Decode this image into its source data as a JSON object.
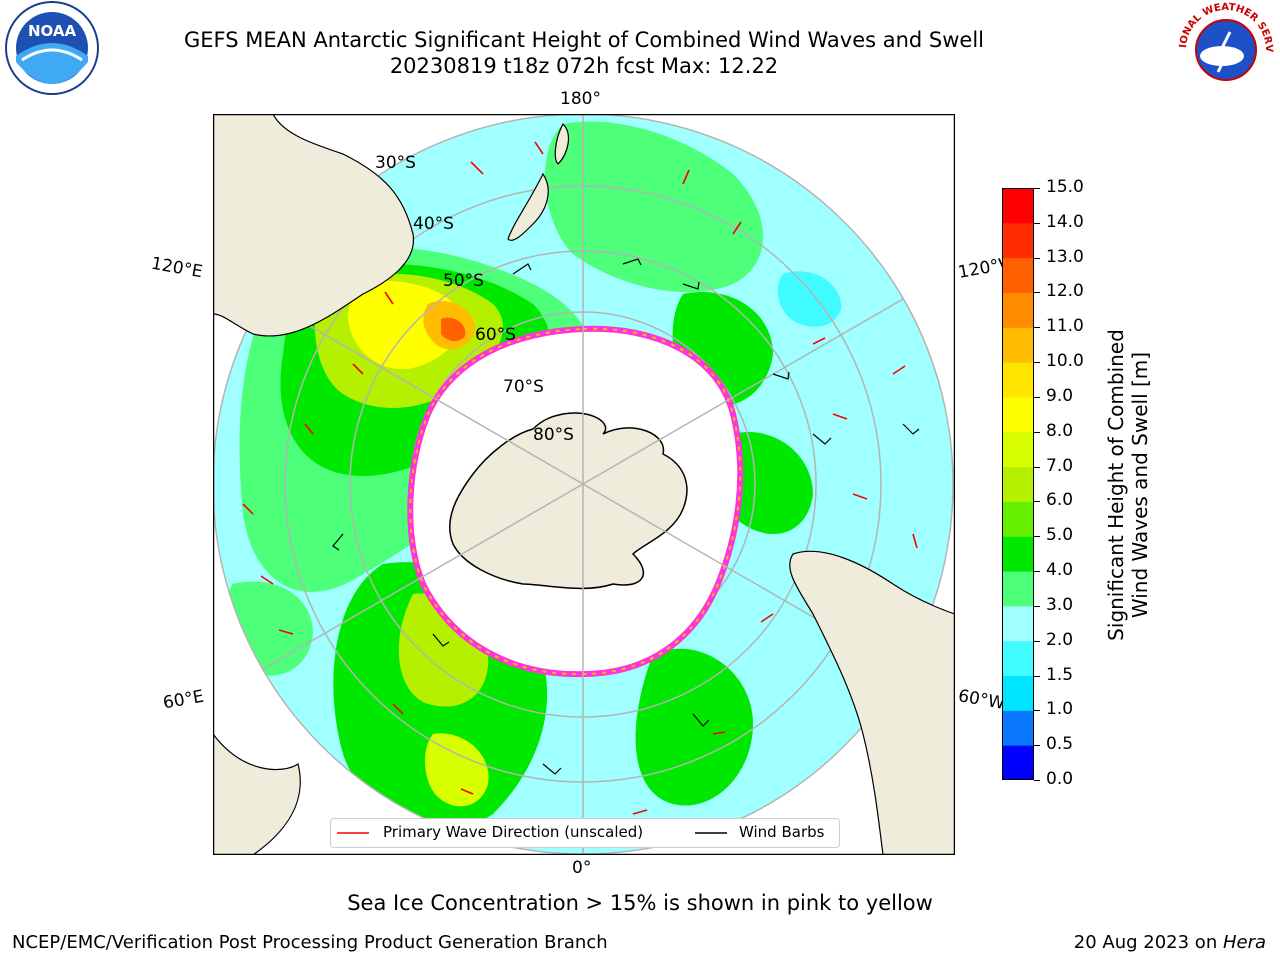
{
  "header": {
    "title_line1": "GEFS MEAN Antarctic Significant Height of Combined Wind Waves and Swell",
    "title_line2": "20230819 t18z 072h fcst   Max: 12.22"
  },
  "logos": {
    "left_logo_text": "NOAA",
    "right_logo_text": "NATIONAL WEATHER SERVICE"
  },
  "map": {
    "longitude_labels": {
      "top": "180°",
      "bottom": "0°",
      "upper_left": "120°E",
      "upper_right": "120°W",
      "lower_left": "60°E",
      "lower_right": "60°W"
    },
    "latitude_labels": [
      "30°S",
      "40°S",
      "50°S",
      "60°S",
      "70°S",
      "80°S"
    ]
  },
  "legend": {
    "primary_wave": "Primary Wave Direction (unscaled)",
    "wind_barbs": "Wind Barbs"
  },
  "colorbar": {
    "label_line1": "Significant Height of Combined",
    "label_line2": "Wind Waves and Swell [m]",
    "ticks": [
      "0.0",
      "0.5",
      "1.0",
      "1.5",
      "2.0",
      "3.0",
      "4.0",
      "5.0",
      "6.0",
      "7.0",
      "8.0",
      "9.0",
      "10.0",
      "11.0",
      "12.0",
      "13.0",
      "14.0",
      "15.0"
    ],
    "colors": [
      "#0000ff",
      "#0a78ff",
      "#00e5ff",
      "#40fbff",
      "#a0ffff",
      "#4dff79",
      "#00e800",
      "#66f000",
      "#b4f000",
      "#d8ff00",
      "#ffff00",
      "#ffe400",
      "#ffbc00",
      "#ff8c00",
      "#ff6000",
      "#ff2c00",
      "#ff0000"
    ]
  },
  "notes": {
    "sea_ice": "Sea Ice Concentration > 15% is shown in pink to yellow"
  },
  "footer": {
    "left": "NCEP/EMC/Verification Post Processing Product Generation Branch",
    "right_date": "20 Aug 2023 on ",
    "right_host": "Hera"
  },
  "colors": {
    "ocean_base": "#a0ffff",
    "land": "#efecdc",
    "sea_ice_edge": "#ff33dd",
    "wave_arrow": "#ff0000",
    "wind_barb": "#000000"
  }
}
